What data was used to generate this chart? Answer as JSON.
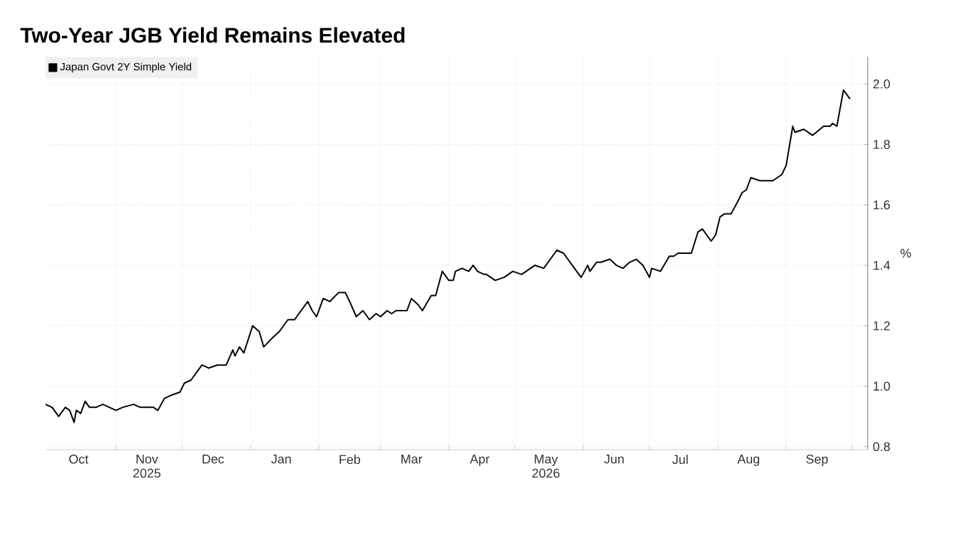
{
  "chart_data": {
    "type": "line",
    "title": "Two-Year JGB Yield Remains Elevated",
    "ylabel": "%",
    "x": [
      "2025-09-30",
      "2025-10-03",
      "2025-10-06",
      "2025-10-09",
      "2025-10-11",
      "2025-10-13",
      "2025-10-14",
      "2025-10-16",
      "2025-10-18",
      "2025-10-20",
      "2025-10-23",
      "2025-10-26",
      "2025-10-29",
      "2025-11-01",
      "2025-11-04",
      "2025-11-09",
      "2025-11-12",
      "2025-11-18",
      "2025-11-20",
      "2025-11-23",
      "2025-11-26",
      "2025-11-30",
      "2025-12-02",
      "2025-12-05",
      "2025-12-10",
      "2025-12-13",
      "2025-12-17",
      "2025-12-21",
      "2025-12-24",
      "2025-12-25",
      "2025-12-27",
      "2025-12-29",
      "2026-01-02",
      "2026-01-05",
      "2026-01-07",
      "2026-01-11",
      "2026-01-14",
      "2026-01-18",
      "2026-01-21",
      "2026-01-27",
      "2026-01-29",
      "2026-01-31",
      "2026-02-03",
      "2026-02-06",
      "2026-02-10",
      "2026-02-13",
      "2026-02-15",
      "2026-02-18",
      "2026-02-21",
      "2026-02-24",
      "2026-02-27",
      "2026-03-01",
      "2026-03-04",
      "2026-03-06",
      "2026-03-08",
      "2026-03-13",
      "2026-03-15",
      "2026-03-18",
      "2026-03-20",
      "2026-03-24",
      "2026-03-26",
      "2026-03-29",
      "2026-04-01",
      "2026-04-03",
      "2026-04-04",
      "2026-04-07",
      "2026-04-10",
      "2026-04-12",
      "2026-04-14",
      "2026-04-17",
      "2026-04-18",
      "2026-04-22",
      "2026-04-26",
      "2026-04-30",
      "2026-05-04",
      "2026-05-10",
      "2026-05-14",
      "2026-05-20",
      "2026-05-23",
      "2026-05-27",
      "2026-05-31",
      "2026-06-03",
      "2026-06-04",
      "2026-06-07",
      "2026-06-09",
      "2026-06-13",
      "2026-06-16",
      "2026-06-19",
      "2026-06-22",
      "2026-06-25",
      "2026-06-28",
      "2026-07-01",
      "2026-07-02",
      "2026-07-06",
      "2026-07-10",
      "2026-07-12",
      "2026-07-14",
      "2026-07-17",
      "2026-07-20",
      "2026-07-23",
      "2026-07-25",
      "2026-07-29",
      "2026-07-31",
      "2026-08-02",
      "2026-08-04",
      "2026-08-07",
      "2026-08-10",
      "2026-08-12",
      "2026-08-14",
      "2026-08-16",
      "2026-08-20",
      "2026-08-23",
      "2026-08-26",
      "2026-08-30",
      "2026-09-01",
      "2026-09-04",
      "2026-09-05",
      "2026-09-09",
      "2026-09-13",
      "2026-09-18",
      "2026-09-21",
      "2026-09-22",
      "2026-09-24",
      "2026-09-27",
      "2026-09-30"
    ],
    "series": [
      {
        "name": "Japan Govt 2Y Simple Yield",
        "color": "#000000",
        "values": [
          0.94,
          0.93,
          0.9,
          0.93,
          0.92,
          0.88,
          0.92,
          0.91,
          0.95,
          0.93,
          0.93,
          0.94,
          0.93,
          0.92,
          0.93,
          0.94,
          0.93,
          0.93,
          0.92,
          0.96,
          0.97,
          0.98,
          1.01,
          1.02,
          1.07,
          1.06,
          1.07,
          1.07,
          1.12,
          1.1,
          1.13,
          1.11,
          1.2,
          1.18,
          1.13,
          1.16,
          1.18,
          1.22,
          1.22,
          1.28,
          1.25,
          1.23,
          1.29,
          1.28,
          1.31,
          1.31,
          1.28,
          1.23,
          1.25,
          1.22,
          1.24,
          1.23,
          1.25,
          1.24,
          1.25,
          1.25,
          1.29,
          1.27,
          1.25,
          1.3,
          1.3,
          1.38,
          1.35,
          1.35,
          1.38,
          1.39,
          1.38,
          1.4,
          1.38,
          1.37,
          1.37,
          1.35,
          1.36,
          1.38,
          1.37,
          1.4,
          1.39,
          1.45,
          1.44,
          1.4,
          1.36,
          1.4,
          1.38,
          1.41,
          1.41,
          1.42,
          1.4,
          1.39,
          1.41,
          1.42,
          1.4,
          1.36,
          1.39,
          1.38,
          1.43,
          1.43,
          1.44,
          1.44,
          1.44,
          1.51,
          1.52,
          1.48,
          1.5,
          1.56,
          1.57,
          1.57,
          1.61,
          1.64,
          1.65,
          1.69,
          1.68,
          1.68,
          1.68,
          1.7,
          1.73,
          1.86,
          1.84,
          1.85,
          1.83,
          1.86,
          1.86,
          1.87,
          1.86,
          1.98,
          1.95
        ]
      }
    ],
    "xlim": [
      "2025-09-30",
      "2026-10-08"
    ],
    "xticks": [
      {
        "value": "2025-11-01",
        "label": null
      },
      {
        "value": "2025-12-01",
        "label": null
      },
      {
        "value": "2026-01-01",
        "label": null
      },
      {
        "value": "2026-02-01",
        "label": null
      },
      {
        "value": "2026-03-01",
        "label": null
      },
      {
        "value": "2026-04-01",
        "label": null
      },
      {
        "value": "2026-05-01",
        "label": null
      },
      {
        "value": "2026-06-01",
        "label": null
      },
      {
        "value": "2026-07-01",
        "label": null
      },
      {
        "value": "2026-08-01",
        "label": null
      },
      {
        "value": "2026-09-01",
        "label": null
      },
      {
        "value": "2026-10-01",
        "label": null
      },
      {
        "value": "2025-10-15",
        "label": "Oct"
      },
      {
        "value": "2025-11-15",
        "label": "Nov 2025"
      },
      {
        "value": "2025-12-15",
        "label": "Dec"
      },
      {
        "value": "2026-01-15",
        "label": "Jan"
      },
      {
        "value": "2026-02-15",
        "label": "Feb"
      },
      {
        "value": "2026-03-15",
        "label": "Mar"
      },
      {
        "value": "2026-04-15",
        "label": "Apr"
      },
      {
        "value": "2026-05-15",
        "label": "May 2026"
      },
      {
        "value": "2026-06-15",
        "label": "Jun"
      },
      {
        "value": "2026-07-15",
        "label": "Jul"
      },
      {
        "value": "2026-08-15",
        "label": "Aug"
      },
      {
        "value": "2026-09-15",
        "label": "Sep"
      }
    ],
    "ylim": [
      0.79,
      2.09
    ],
    "yticks": [
      {
        "value": 0.8,
        "label": "0.8"
      },
      {
        "value": 1.0,
        "label": "1.0"
      },
      {
        "value": 1.2,
        "label": "1.2"
      },
      {
        "value": 1.4,
        "label": "1.4"
      },
      {
        "value": 1.6,
        "label": "1.6"
      },
      {
        "value": 1.8,
        "label": "1.8"
      },
      {
        "value": 2.0,
        "label": "2.0"
      }
    ],
    "grid": true,
    "legend": "top left"
  }
}
